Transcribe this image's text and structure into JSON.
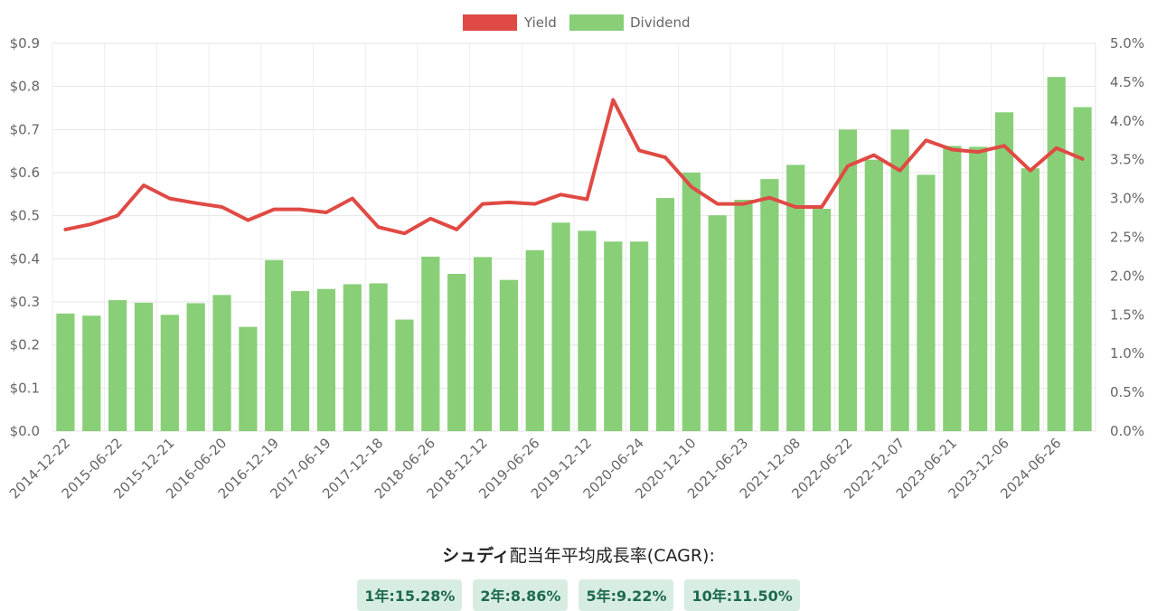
{
  "chart_data": {
    "type": "bar",
    "legend_position": "top",
    "grid": true,
    "y_left": {
      "min": 0,
      "max": 0.9,
      "step": 0.1,
      "tick_labels": [
        "$0.0",
        "$0.1",
        "$0.2",
        "$0.3",
        "$0.4",
        "$0.5",
        "$0.6",
        "$0.7",
        "$0.8",
        "$0.9"
      ]
    },
    "y_right": {
      "min": 0,
      "max": 5.0,
      "step": 0.5,
      "tick_labels": [
        "0.0%",
        "0.5%",
        "1.0%",
        "1.5%",
        "2.0%",
        "2.5%",
        "3.0%",
        "3.5%",
        "4.0%",
        "4.5%",
        "5.0%"
      ]
    },
    "x_tick_labels": [
      "2014-12-22",
      "2015-06-22",
      "2015-12-21",
      "2016-06-20",
      "2016-12-19",
      "2017-06-19",
      "2017-12-18",
      "2018-06-26",
      "2018-12-12",
      "2019-06-26",
      "2019-12-12",
      "2020-06-24",
      "2020-12-10",
      "2021-06-23",
      "2021-12-08",
      "2022-06-22",
      "2022-12-07",
      "2023-06-21",
      "2023-12-06",
      "2024-06-26"
    ],
    "x_tick_every": 2,
    "series": [
      {
        "name": "Dividend",
        "type": "bar",
        "axis": "left",
        "color": "#88cf78",
        "values": [
          0.273,
          0.268,
          0.304,
          0.298,
          0.27,
          0.297,
          0.316,
          0.242,
          0.397,
          0.325,
          0.33,
          0.341,
          0.343,
          0.259,
          0.405,
          0.365,
          0.404,
          0.351,
          0.42,
          0.484,
          0.465,
          0.44,
          0.44,
          0.541,
          0.6,
          0.501,
          0.537,
          0.585,
          0.618,
          0.516,
          0.7,
          0.63,
          0.7,
          0.595,
          0.662,
          0.66,
          0.74,
          0.61,
          0.822,
          0.752
        ]
      },
      {
        "name": "Yield",
        "type": "line",
        "axis": "right",
        "color": "#e04a44",
        "values": [
          2.6,
          2.67,
          2.78,
          3.17,
          3.0,
          2.94,
          2.89,
          2.72,
          2.86,
          2.86,
          2.82,
          3.0,
          2.63,
          2.55,
          2.74,
          2.6,
          2.93,
          2.95,
          2.93,
          3.05,
          2.99,
          4.27,
          3.62,
          3.53,
          3.15,
          2.93,
          2.93,
          3.01,
          2.89,
          2.89,
          3.42,
          3.56,
          3.36,
          3.75,
          3.63,
          3.6,
          3.68,
          3.36,
          3.65,
          3.51
        ]
      }
    ]
  },
  "cagr": {
    "title_bold": "シュディ",
    "title_rest": "配当年平均成長率(CAGR):",
    "badges": [
      "1年:15.28%",
      "2年:8.86%",
      "5年:9.22%",
      "10年:11.50%"
    ]
  }
}
